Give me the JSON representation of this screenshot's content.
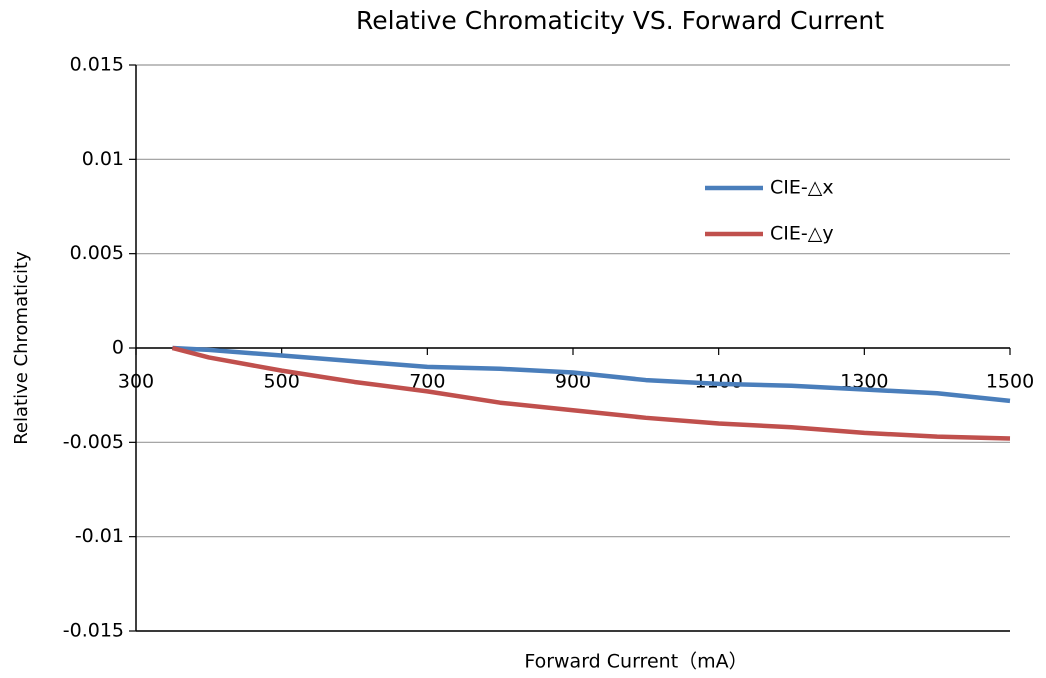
{
  "chart_data": {
    "type": "line",
    "title": "Relative Chromaticity VS. Forward Current",
    "xlabel": "Forward Current（mA）",
    "ylabel": "Relative Chromaticity",
    "x": [
      350,
      400,
      500,
      600,
      700,
      800,
      900,
      1000,
      1100,
      1200,
      1300,
      1400,
      1500
    ],
    "series": [
      {
        "name": "CIE-△x",
        "color": "#4a7ebb",
        "values": [
          0,
          -0.0001,
          -0.0004,
          -0.0007,
          -0.001,
          -0.0011,
          -0.0013,
          -0.0017,
          -0.0019,
          -0.002,
          -0.0022,
          -0.0024,
          -0.0028
        ]
      },
      {
        "name": "CIE-△y",
        "color": "#c0504d",
        "values": [
          0,
          -0.0005,
          -0.0012,
          -0.0018,
          -0.0023,
          -0.0029,
          -0.0033,
          -0.0037,
          -0.004,
          -0.0042,
          -0.0045,
          -0.0047,
          -0.0048
        ]
      }
    ],
    "xlim": [
      300,
      1500
    ],
    "xticks": [
      300,
      500,
      700,
      900,
      1100,
      1300,
      1500
    ],
    "ylim": [
      -0.015,
      0.015
    ],
    "yticks": [
      0.015,
      0.01,
      0.005,
      0,
      -0.005,
      -0.01,
      -0.015
    ],
    "grid": true,
    "legend": "upper right"
  }
}
